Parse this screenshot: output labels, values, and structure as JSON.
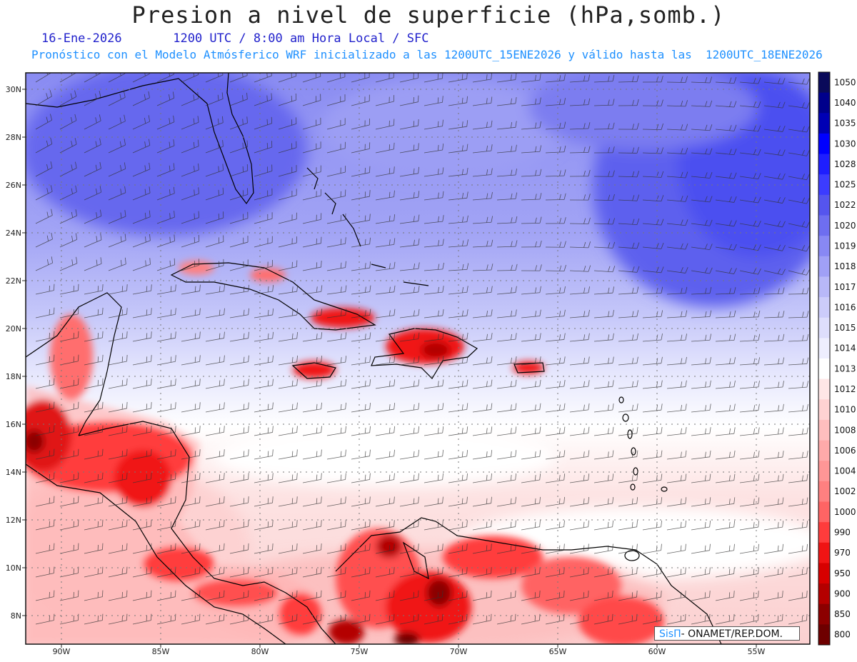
{
  "header": {
    "title": "Presion a nivel de superficie (hPa,somb.)",
    "date": "16-Ene-2026",
    "time_info": "1200 UTC / 8:00 am Hora Local / SFC",
    "forecast_info": "Pronóstico con el Modelo Atmósferico WRF inicializado a las 1200UTC_15ENE2026 y válido hasta las  1200UTC_18ENE2026"
  },
  "map": {
    "lat_labels": [
      "30N",
      "28N",
      "26N",
      "24N",
      "22N",
      "20N",
      "18N",
      "16N",
      "14N",
      "12N",
      "10N",
      "8N"
    ],
    "lon_labels": [
      "90W",
      "85W",
      "80W",
      "75W",
      "70W",
      "65W",
      "60W",
      "55W"
    ],
    "colorbar": {
      "levels": [
        "1050",
        "1040",
        "1035",
        "1030",
        "1028",
        "1025",
        "1022",
        "1020",
        "1019",
        "1018",
        "1017",
        "1016",
        "1015",
        "1014",
        "1013",
        "1012",
        "1010",
        "1008",
        "1006",
        "1004",
        "1002",
        "1000",
        "990",
        "970",
        "950",
        "900",
        "850",
        "800"
      ],
      "colors": [
        "#0a0a5a",
        "#00008b",
        "#0000b4",
        "#0000ff",
        "#1e1eff",
        "#3c3cff",
        "#5555ee",
        "#6e6ef0",
        "#8888f4",
        "#a0a0f6",
        "#b8b8f8",
        "#ccccfa",
        "#dedefc",
        "#eeeefe",
        "#ffffff",
        "#ffe6e6",
        "#ffd2d2",
        "#ffbebe",
        "#ffaaaa",
        "#ff9696",
        "#ff8080",
        "#ff6464",
        "#ff3c3c",
        "#f01414",
        "#d70000",
        "#b40000",
        "#8c0000",
        "#6e0000"
      ]
    }
  },
  "footer": {
    "brand": "SisΠ",
    "credit": "- ONAMET/REP.DOM."
  }
}
